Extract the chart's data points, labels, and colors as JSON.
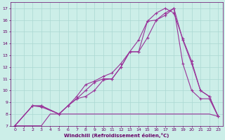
{
  "xlabel": "Windchill (Refroidissement éolien,°C)",
  "bg_color": "#cceee8",
  "grid_color": "#aad8d2",
  "line_color": "#993399",
  "xlim": [
    -0.5,
    23.5
  ],
  "ylim": [
    7,
    17.5
  ],
  "xticks": [
    0,
    1,
    2,
    3,
    4,
    5,
    6,
    7,
    8,
    9,
    10,
    11,
    12,
    13,
    14,
    15,
    16,
    17,
    18,
    19,
    20,
    21,
    22,
    23
  ],
  "yticks": [
    7,
    8,
    9,
    10,
    11,
    12,
    13,
    14,
    15,
    16,
    17
  ],
  "line1_x": [
    0,
    1,
    2,
    3,
    4,
    5,
    6,
    7,
    8,
    9,
    10,
    11,
    12,
    13,
    14,
    15,
    16,
    17,
    18,
    19,
    20,
    21,
    22,
    23
  ],
  "line1_y": [
    7.0,
    7.0,
    7.0,
    7.0,
    8.0,
    8.0,
    8.0,
    8.0,
    8.0,
    8.0,
    8.0,
    8.0,
    8.0,
    8.0,
    8.0,
    8.0,
    8.0,
    8.0,
    8.0,
    8.0,
    8.0,
    8.0,
    8.0,
    7.8
  ],
  "line2_x": [
    0,
    2,
    3,
    5,
    6,
    7,
    8,
    9,
    10,
    11,
    12,
    13,
    14,
    15,
    16,
    17,
    18,
    19,
    20,
    21,
    22,
    23
  ],
  "line2_y": [
    7.0,
    8.7,
    8.7,
    8.0,
    8.7,
    9.3,
    10.0,
    10.7,
    11.0,
    11.0,
    12.0,
    13.3,
    13.3,
    14.5,
    16.0,
    16.6,
    17.0,
    14.3,
    12.3,
    10.0,
    9.5,
    7.8
  ],
  "line3_x": [
    0,
    2,
    3,
    5,
    6,
    7,
    8,
    9,
    10,
    11,
    12,
    13,
    14,
    15,
    16,
    17,
    18,
    19,
    20,
    21,
    22,
    23
  ],
  "line3_y": [
    7.0,
    8.7,
    8.6,
    8.0,
    8.7,
    9.5,
    10.5,
    10.8,
    11.2,
    11.5,
    12.3,
    13.3,
    14.3,
    15.9,
    16.6,
    17.0,
    16.6,
    14.4,
    12.5,
    10.0,
    9.5,
    7.8
  ],
  "line4_x": [
    0,
    2,
    3,
    5,
    6,
    7,
    8,
    9,
    10,
    11,
    12,
    13,
    14,
    15,
    16,
    17,
    18,
    19,
    20,
    21,
    22,
    23
  ],
  "line4_y": [
    7.0,
    8.7,
    8.7,
    8.0,
    8.7,
    9.3,
    9.5,
    10.0,
    10.9,
    11.0,
    12.0,
    13.3,
    13.3,
    15.9,
    16.0,
    16.4,
    17.0,
    12.3,
    10.0,
    9.3,
    9.3,
    7.8
  ]
}
